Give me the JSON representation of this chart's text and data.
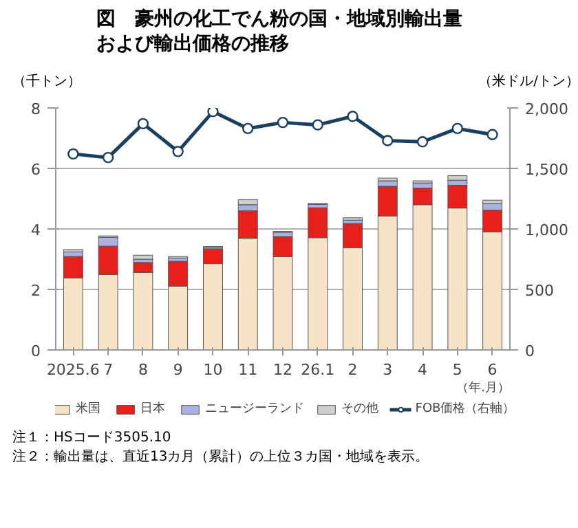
{
  "chart_data": {
    "type": "bar",
    "stacked": true,
    "title": "図　豪州の化工でん粉の国・地域別輸出量および輸出価格の推移",
    "ylabel": "（千トン）",
    "y2label": "（米ドル/トン）",
    "xlabel": "（年.月）",
    "categories": [
      "2025.6",
      "7",
      "8",
      "9",
      "10",
      "11",
      "12",
      "26.1",
      "2",
      "3",
      "4",
      "5",
      "6"
    ],
    "series": [
      {
        "name": "米国",
        "color": "#f6e3c8",
        "values": [
          2.38,
          2.49,
          2.56,
          2.11,
          2.85,
          3.69,
          3.08,
          3.71,
          3.38,
          4.43,
          4.8,
          4.69,
          3.9
        ]
      },
      {
        "name": "日本",
        "color": "#e8201c",
        "values": [
          0.71,
          0.94,
          0.33,
          0.82,
          0.49,
          0.91,
          0.67,
          0.99,
          0.8,
          0.98,
          0.55,
          0.75,
          0.72
        ]
      },
      {
        "name": "ニュージーランド",
        "color": "#aab0e0",
        "values": [
          0.15,
          0.29,
          0.11,
          0.11,
          0.04,
          0.2,
          0.13,
          0.11,
          0.11,
          0.18,
          0.17,
          0.17,
          0.22
        ]
      },
      {
        "name": "その他",
        "color": "#cfcfcf",
        "values": [
          0.08,
          0.05,
          0.13,
          0.05,
          0.04,
          0.17,
          0.04,
          0.04,
          0.08,
          0.09,
          0.07,
          0.15,
          0.11
        ]
      },
      {
        "name": "FOB価格（右軸）",
        "type": "line",
        "axis": "y2",
        "color": "#1b3f5e",
        "marker": "circle",
        "values": [
          1620,
          1590,
          1870,
          1640,
          1970,
          1830,
          1880,
          1860,
          1930,
          1730,
          1720,
          1830,
          1780
        ]
      }
    ],
    "ylim": [
      0,
      8
    ],
    "yticks": [
      0,
      2,
      4,
      6,
      8
    ],
    "y2lim": [
      0,
      2000
    ],
    "y2ticks": [
      0,
      {
        "value": 500,
        "label": "500"
      },
      {
        "value": 1000,
        "label": "1,000"
      },
      {
        "value": 1500,
        "label": "1,500"
      },
      {
        "value": 2000,
        "label": "2,000"
      }
    ],
    "grid": "y",
    "legend": "bottom",
    "annotations": [
      "注１：HSコード3505.10",
      "注２：輸出量は、直近13カ月（累計）の上位３カ国・地域を表示。"
    ]
  }
}
